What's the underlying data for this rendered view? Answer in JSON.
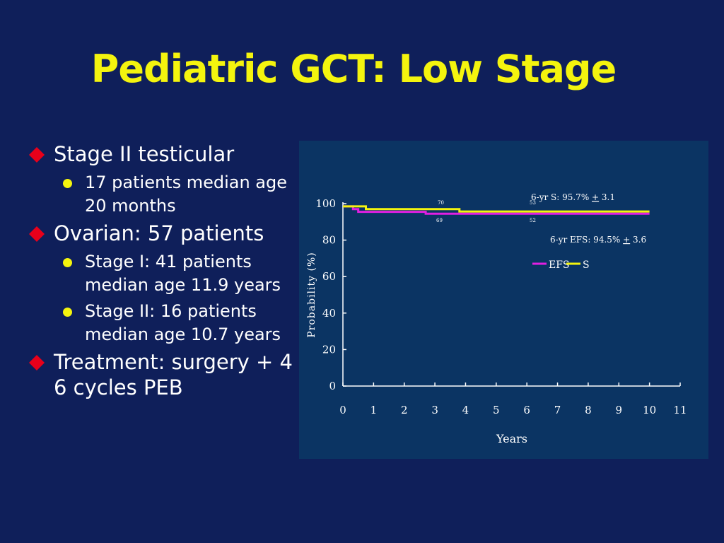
{
  "slide": {
    "title": "Pediatric GCT: Low Stage",
    "accent_color": "#f4f40e",
    "bullet_color": "#e8001a",
    "bullets": [
      {
        "text": "Stage II testicular",
        "sub": [
          {
            "line1": "17 patients median age",
            "line2": "20 months"
          }
        ]
      },
      {
        "text": "Ovarian: 57 patients",
        "sub": [
          {
            "line1": "Stage I: 41 patients",
            "line2": "median age 11.9 years"
          },
          {
            "line1": "Stage II: 16 patients",
            "line2": "median age 10.7 years"
          }
        ]
      },
      {
        "text_line1": "Treatment: surgery + 4",
        "text_line2": "6 cycles PEB"
      }
    ]
  },
  "chart_data": {
    "type": "line",
    "xlabel": "Years",
    "ylabel": "Probability (%)",
    "xlim": [
      0,
      11
    ],
    "ylim": [
      0,
      100
    ],
    "xticks": [
      "0",
      "1",
      "2",
      "3",
      "4",
      "5",
      "6",
      "7",
      "8",
      "9",
      "10",
      "11"
    ],
    "yticks": [
      "0",
      "20",
      "40",
      "60",
      "80",
      "100"
    ],
    "legend": {
      "placement": "top-right",
      "entries": [
        "EFS",
        "S"
      ]
    },
    "annotations": {
      "s_label": "6-yr S: 95.7% ",
      "s_pm": "+",
      "s_val": " 3.1",
      "efs_label": "6-yr EFS: 94.5% ",
      "efs_pm": "+",
      "efs_val": " 3.6",
      "n_at_risk_s": [
        "70",
        "53"
      ],
      "n_at_risk_efs": [
        "69",
        "52"
      ]
    },
    "series": [
      {
        "name": "EFS",
        "color": "#e21fe2",
        "points": [
          [
            0,
            98.5
          ],
          [
            0.33,
            98.5
          ],
          [
            0.33,
            97
          ],
          [
            0.5,
            97
          ],
          [
            0.5,
            95.5
          ],
          [
            2.7,
            95.5
          ],
          [
            2.7,
            94.5
          ],
          [
            10,
            94.5
          ]
        ]
      },
      {
        "name": "S",
        "color": "#f4f40e",
        "points": [
          [
            0,
            98.5
          ],
          [
            0.75,
            98.5
          ],
          [
            0.75,
            97
          ],
          [
            3.8,
            97
          ],
          [
            3.8,
            95.7
          ],
          [
            10,
            95.7
          ]
        ]
      }
    ]
  }
}
